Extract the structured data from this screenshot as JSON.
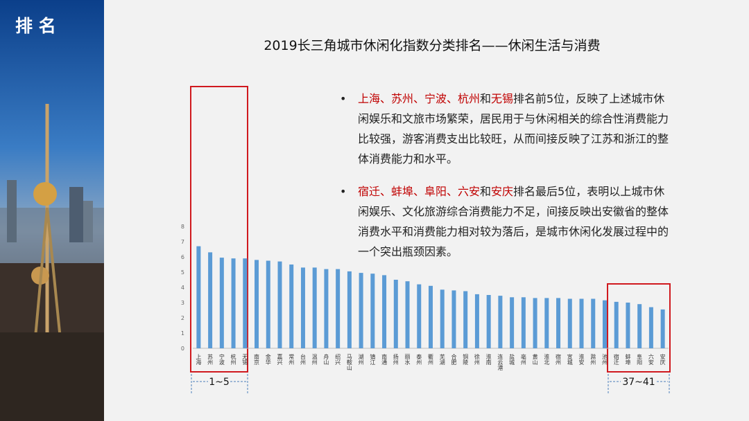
{
  "page_title": "排 名",
  "chart_data": {
    "type": "bar",
    "title": "2019长三角城市休闲化指数分类排名——休闲生活与消费",
    "categories": [
      "上海",
      "苏州",
      "宁波",
      "杭州",
      "无锡",
      "南京",
      "金华",
      "嘉兴",
      "常州",
      "台州",
      "温州",
      "舟山",
      "绍兴",
      "马鞍山",
      "湖州",
      "镇江",
      "南通",
      "扬州",
      "丽水",
      "泰州",
      "衢州",
      "芜湖",
      "合肥",
      "铜陵",
      "徐州",
      "淮南",
      "连云港",
      "盐城",
      "亳州",
      "黄山",
      "淮北",
      "宿州",
      "宣城",
      "淮安",
      "滁州",
      "池州",
      "宿迁",
      "蚌埠",
      "阜阳",
      "六安",
      "安庆"
    ],
    "values": [
      6.7,
      6.3,
      5.95,
      5.9,
      5.9,
      5.8,
      5.75,
      5.7,
      5.5,
      5.3,
      5.3,
      5.2,
      5.2,
      5.05,
      4.95,
      4.9,
      4.8,
      4.5,
      4.4,
      4.2,
      4.1,
      3.85,
      3.8,
      3.75,
      3.55,
      3.5,
      3.45,
      3.35,
      3.35,
      3.3,
      3.3,
      3.3,
      3.25,
      3.25,
      3.25,
      3.15,
      3.05,
      3.0,
      2.9,
      2.7,
      2.55
    ],
    "color": "#5b9bd5",
    "ylim": [
      0,
      8
    ],
    "yticks": [
      0,
      1,
      2,
      3,
      4,
      5,
      6,
      7,
      8
    ],
    "annotations": [
      "1~5",
      "37~41"
    ]
  },
  "bullets": [
    [
      {
        "text": "上海、苏州、宁波、杭州",
        "color": "#c00000"
      },
      "和",
      {
        "text": "无锡",
        "color": "#c00000"
      },
      "排名前5位，反映了上述城市休闲娱乐和文旅市场繁荣，居民用于与休闲相关的综合性消费能力比较强，游客消费支出比较旺，从而间接反映了江苏和浙江的整体消费能力和水平。"
    ],
    [
      {
        "text": "宿迁、蚌埠、阜阳、六安",
        "color": "#c00000"
      },
      "和",
      {
        "text": "安庆",
        "color": "#c00000"
      },
      "排名最后5位，表明以上城市休闲娱乐、文化旅游综合消费能力不足，间接反映出安徽省的整体消费水平和消费能力相对较为落后，是城市休闲化发展过程中的一个突出瓶颈因素。"
    ]
  ]
}
